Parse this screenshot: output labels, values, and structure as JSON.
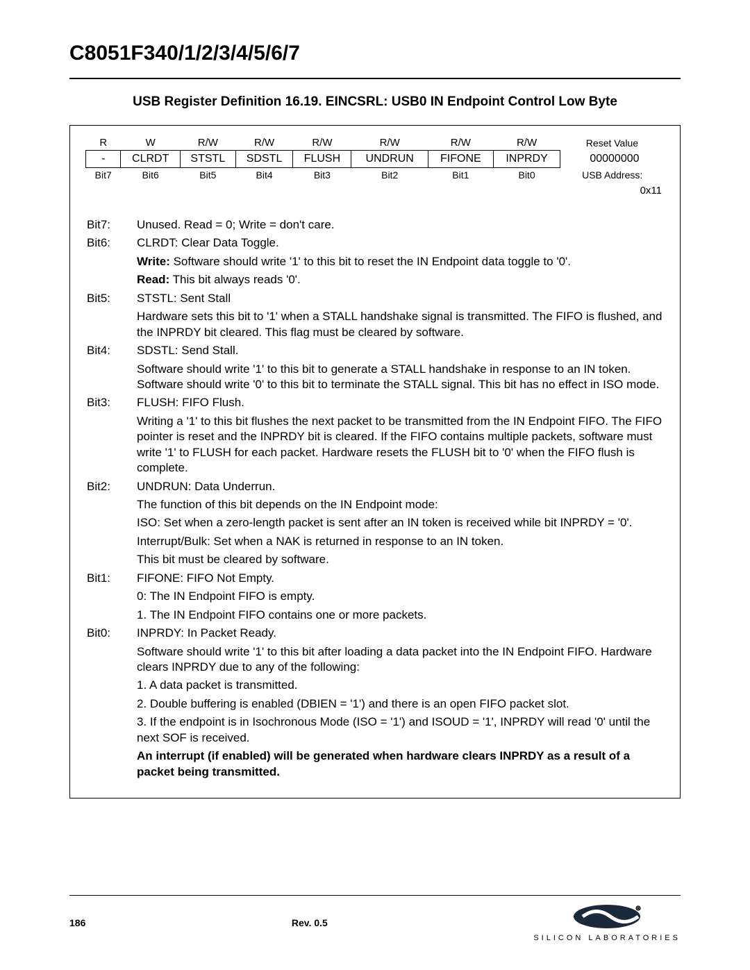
{
  "chip_title": "C8051F340/1/2/3/4/5/6/7",
  "reg_title": "USB Register Definition 16.19. EINCSRL: USB0 IN Endpoint Control Low Byte",
  "bits_table": {
    "rw_row": [
      "R",
      "W",
      "R/W",
      "R/W",
      "R/W",
      "R/W",
      "R/W",
      "R/W",
      "Reset Value"
    ],
    "name_row": [
      "-",
      "CLRDT",
      "STSTL",
      "SDSTL",
      "FLUSH",
      "UNDRUN",
      "FIFONE",
      "INPRDY",
      "00000000"
    ],
    "bit_row": [
      "Bit7",
      "Bit6",
      "Bit5",
      "Bit4",
      "Bit3",
      "Bit2",
      "Bit1",
      "Bit0",
      "USB Address:"
    ],
    "usb_address": "0x11"
  },
  "descriptions": [
    {
      "label": "Bit7:",
      "lines": [
        {
          "plain": "Unused. Read = 0; Write = don't care."
        }
      ]
    },
    {
      "label": "Bit6:",
      "lines": [
        {
          "plain": "CLRDT: Clear Data Toggle."
        },
        {
          "boldPrefix": "Write:",
          "rest": " Software should write '1' to this bit to reset the IN Endpoint data toggle to '0'."
        },
        {
          "boldPrefix": "Read:",
          "rest": " This bit always reads '0'."
        }
      ]
    },
    {
      "label": "Bit5:",
      "lines": [
        {
          "plain": "STSTL: Sent Stall"
        },
        {
          "plain": "Hardware sets this bit to '1' when a STALL handshake signal is transmitted. The FIFO is flushed, and the INPRDY bit cleared. This flag must be cleared by software."
        }
      ]
    },
    {
      "label": "Bit4:",
      "lines": [
        {
          "plain": "SDSTL: Send Stall."
        },
        {
          "plain": "Software should write '1' to this bit to generate a STALL handshake in response to an IN token. Software should write '0' to this bit to terminate the STALL signal. This bit has no effect in ISO mode."
        }
      ]
    },
    {
      "label": "Bit3:",
      "lines": [
        {
          "plain": "FLUSH: FIFO Flush."
        },
        {
          "plain": "Writing a '1' to this bit flushes the next packet to be transmitted from the IN Endpoint FIFO. The FIFO pointer is reset and the INPRDY bit is cleared. If the FIFO contains multiple packets, software must write '1' to FLUSH for each packet. Hardware resets the FLUSH bit to '0' when the FIFO flush is complete."
        }
      ]
    },
    {
      "label": "Bit2:",
      "lines": [
        {
          "plain": "UNDRUN: Data Underrun."
        },
        {
          "plain": "The function of this bit depends on the IN Endpoint mode:"
        },
        {
          "plain": "ISO: Set when a zero-length packet is sent after an IN token is received while bit INPRDY = '0'."
        },
        {
          "plain": "Interrupt/Bulk: Set when a NAK is returned in response to an IN token."
        },
        {
          "plain": "This bit must be cleared by software."
        }
      ]
    },
    {
      "label": "Bit1:",
      "lines": [
        {
          "plain": "FIFONE: FIFO Not Empty."
        },
        {
          "plain": "0: The IN Endpoint FIFO is empty."
        },
        {
          "plain": "1. The IN Endpoint FIFO contains one or more packets."
        }
      ]
    },
    {
      "label": "Bit0:",
      "lines": [
        {
          "plain": "INPRDY: In Packet Ready."
        },
        {
          "plain": "Software should write '1' to this bit after loading a data packet into the IN Endpoint FIFO. Hardware clears INPRDY due to any of the following:"
        },
        {
          "plain": "1. A data packet is transmitted."
        },
        {
          "plain": "2. Double buffering is enabled (DBIEN = '1') and there is an open FIFO packet slot."
        },
        {
          "plain": "3. If the endpoint is in Isochronous Mode (ISO = '1') and ISOUD = '1', INPRDY will read '0' until the next SOF is received."
        },
        {
          "boldAll": "An interrupt (if enabled) will be generated when hardware clears INPRDY as a result of a packet being transmitted."
        }
      ]
    }
  ],
  "footer": {
    "page": "186",
    "rev": "Rev. 0.5",
    "brand": "SILICON LABORATORIES"
  }
}
